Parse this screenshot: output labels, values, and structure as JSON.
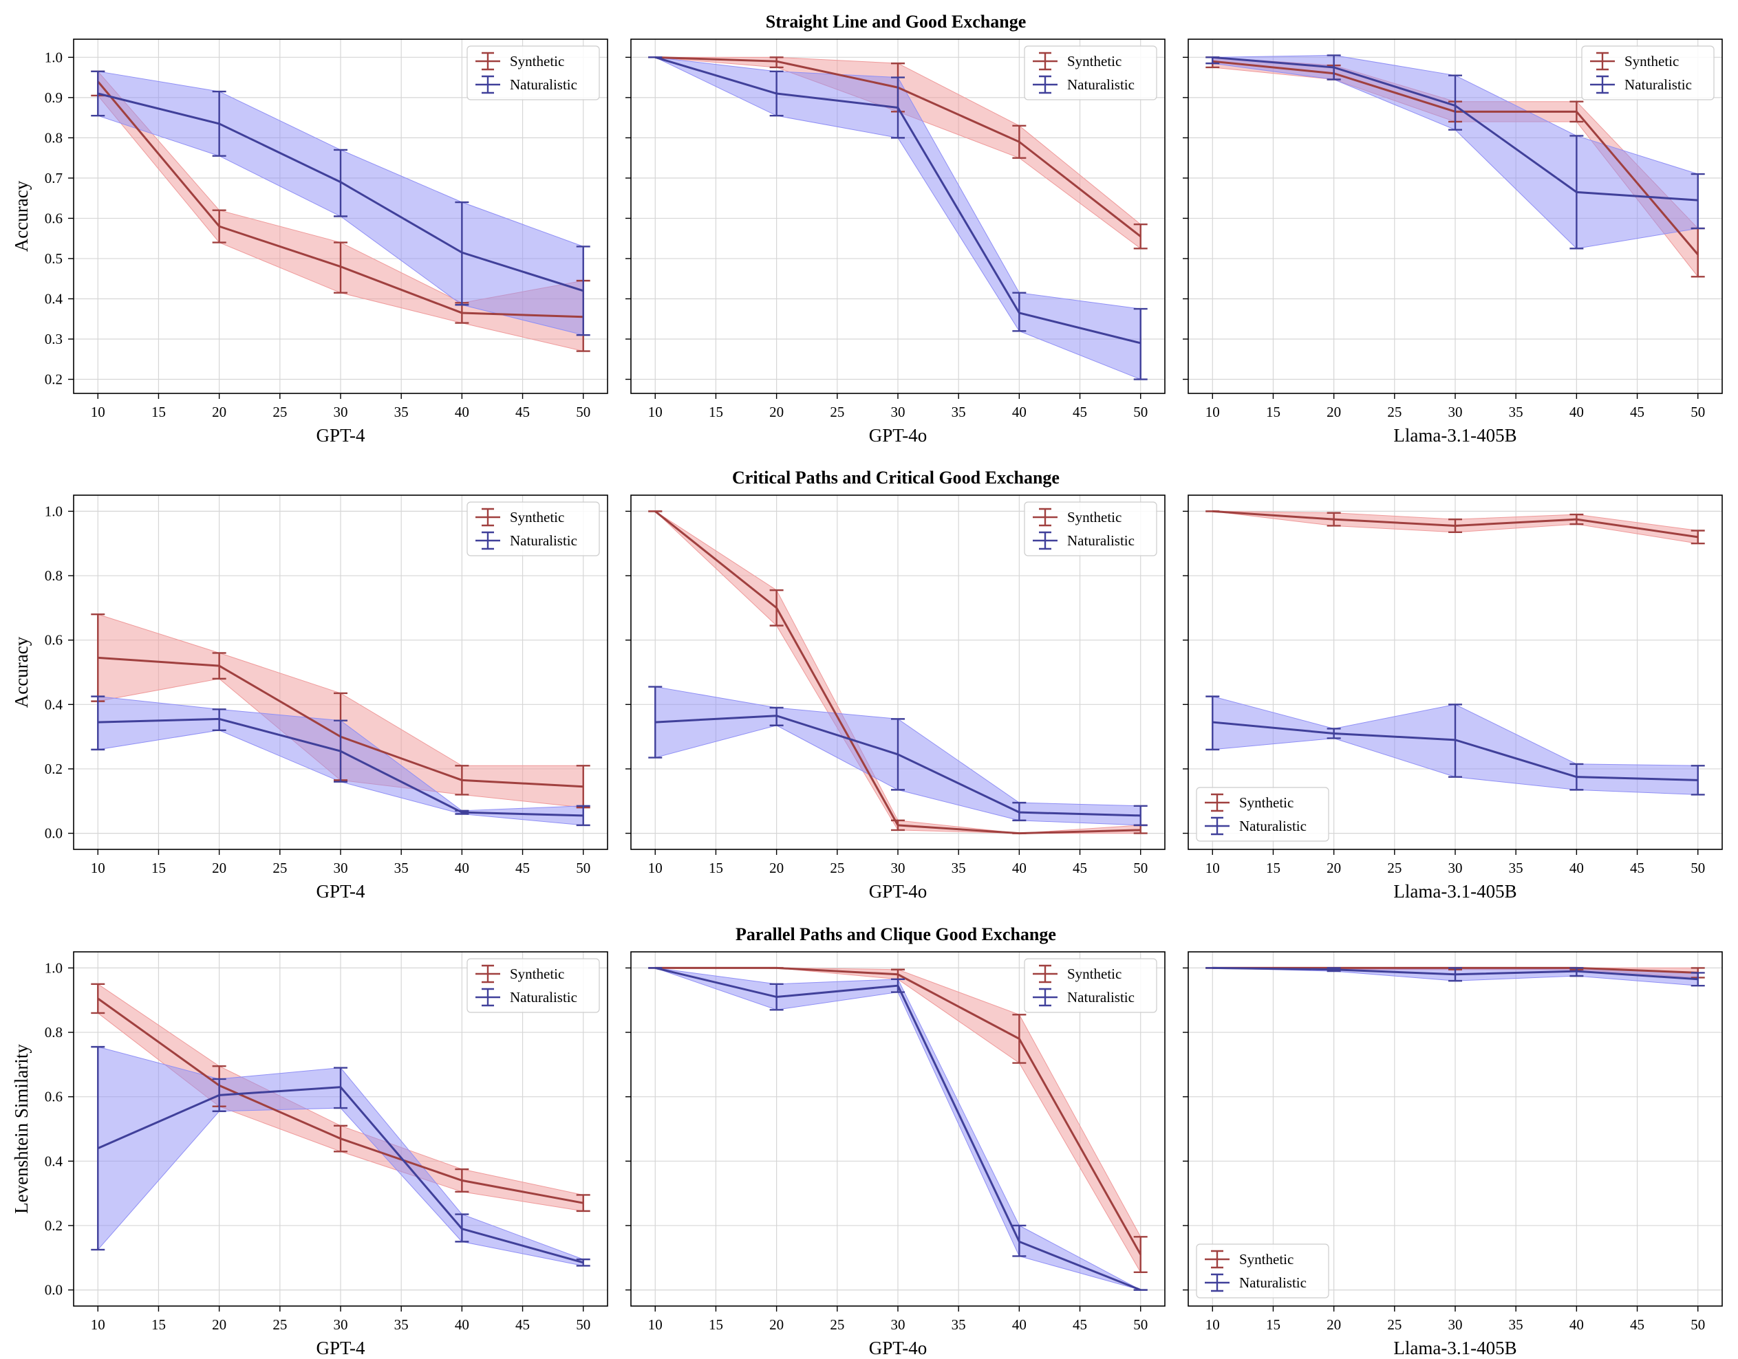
{
  "figure": {
    "row_titles": [
      "Straight Line and Good Exchange",
      "Critical Paths and Critical Good Exchange",
      "Parallel Paths and Clique Good Exchange"
    ],
    "row_ylabels": [
      "Accuracy",
      "Accuracy",
      "Levenshtein Similarity"
    ],
    "col_xlabels": [
      "GPT-4",
      "GPT-4o",
      "Llama-3.1-405B"
    ],
    "colors": {
      "synthetic_line": "#a0403f",
      "synthetic_fill": "#ef9a9a",
      "naturalistic_line": "#40409a",
      "naturalistic_fill": "#8f8ff5"
    }
  },
  "chart_data": [
    {
      "type": "line",
      "title": "Straight Line and Good Exchange",
      "xlabel": "GPT-4",
      "ylabel": "Accuracy",
      "x": [
        10,
        20,
        30,
        40,
        50
      ],
      "xlim": [
        8,
        52
      ],
      "ylim": [
        0.165,
        1.045
      ],
      "xticks": [
        10,
        15,
        20,
        25,
        30,
        35,
        40,
        45,
        50
      ],
      "yticks": [
        0.2,
        0.3,
        0.4,
        0.5,
        0.6,
        0.7,
        0.8,
        0.9,
        1.0
      ],
      "legend_position": "upper right",
      "series": [
        {
          "name": "Synthetic",
          "values": [
            0.94,
            0.58,
            0.48,
            0.365,
            0.355
          ],
          "lower": [
            0.905,
            0.54,
            0.415,
            0.34,
            0.27
          ],
          "upper": [
            0.965,
            0.62,
            0.54,
            0.39,
            0.445
          ]
        },
        {
          "name": "Naturalistic",
          "values": [
            0.91,
            0.835,
            0.69,
            0.515,
            0.42
          ],
          "lower": [
            0.855,
            0.755,
            0.605,
            0.385,
            0.31
          ],
          "upper": [
            0.965,
            0.915,
            0.77,
            0.64,
            0.53
          ]
        }
      ]
    },
    {
      "type": "line",
      "title": "Straight Line and Good Exchange",
      "xlabel": "GPT-4o",
      "ylabel": "Accuracy",
      "x": [
        10,
        20,
        30,
        40,
        50
      ],
      "xlim": [
        8,
        52
      ],
      "ylim": [
        0.165,
        1.045
      ],
      "xticks": [
        10,
        15,
        20,
        25,
        30,
        35,
        40,
        45,
        50
      ],
      "yticks": [
        0.2,
        0.3,
        0.4,
        0.5,
        0.6,
        0.7,
        0.8,
        0.9,
        1.0
      ],
      "legend_position": "upper right",
      "series": [
        {
          "name": "Synthetic",
          "values": [
            1.0,
            0.99,
            0.925,
            0.79,
            0.555
          ],
          "lower": [
            1.0,
            0.975,
            0.865,
            0.75,
            0.525
          ],
          "upper": [
            1.0,
            1.0,
            0.985,
            0.83,
            0.585
          ]
        },
        {
          "name": "Naturalistic",
          "values": [
            1.0,
            0.91,
            0.875,
            0.365,
            0.29
          ],
          "lower": [
            1.0,
            0.855,
            0.8,
            0.32,
            0.2
          ],
          "upper": [
            1.0,
            0.965,
            0.95,
            0.415,
            0.375
          ]
        }
      ]
    },
    {
      "type": "line",
      "title": "Straight Line and Good Exchange",
      "xlabel": "Llama-3.1-405B",
      "ylabel": "Accuracy",
      "x": [
        10,
        20,
        30,
        40,
        50
      ],
      "xlim": [
        8,
        52
      ],
      "ylim": [
        0.165,
        1.045
      ],
      "xticks": [
        10,
        15,
        20,
        25,
        30,
        35,
        40,
        45,
        50
      ],
      "yticks": [
        0.2,
        0.3,
        0.4,
        0.5,
        0.6,
        0.7,
        0.8,
        0.9,
        1.0
      ],
      "legend_position": "upper right",
      "series": [
        {
          "name": "Synthetic",
          "values": [
            0.99,
            0.96,
            0.865,
            0.865,
            0.51
          ],
          "lower": [
            0.975,
            0.945,
            0.84,
            0.84,
            0.455
          ],
          "upper": [
            1.0,
            0.98,
            0.89,
            0.89,
            0.575
          ]
        },
        {
          "name": "Naturalistic",
          "values": [
            1.0,
            0.975,
            0.88,
            0.665,
            0.645
          ],
          "lower": [
            0.985,
            0.945,
            0.82,
            0.525,
            0.575
          ],
          "upper": [
            1.0,
            1.005,
            0.955,
            0.805,
            0.71
          ]
        }
      ]
    },
    {
      "type": "line",
      "title": "Critical Paths and Critical Good Exchange",
      "xlabel": "GPT-4",
      "ylabel": "Accuracy",
      "x": [
        10,
        20,
        30,
        40,
        50
      ],
      "xlim": [
        8,
        52
      ],
      "ylim": [
        -0.05,
        1.05
      ],
      "xticks": [
        10,
        15,
        20,
        25,
        30,
        35,
        40,
        45,
        50
      ],
      "yticks": [
        0.0,
        0.2,
        0.4,
        0.6,
        0.8,
        1.0
      ],
      "legend_position": "upper right",
      "series": [
        {
          "name": "Synthetic",
          "values": [
            0.545,
            0.52,
            0.3,
            0.165,
            0.145
          ],
          "lower": [
            0.41,
            0.48,
            0.165,
            0.12,
            0.08
          ],
          "upper": [
            0.68,
            0.56,
            0.435,
            0.21,
            0.21
          ]
        },
        {
          "name": "Naturalistic",
          "values": [
            0.345,
            0.355,
            0.255,
            0.065,
            0.055
          ],
          "lower": [
            0.26,
            0.32,
            0.16,
            0.06,
            0.025
          ],
          "upper": [
            0.425,
            0.385,
            0.35,
            0.07,
            0.085
          ]
        }
      ]
    },
    {
      "type": "line",
      "title": "Critical Paths and Critical Good Exchange",
      "xlabel": "GPT-4o",
      "ylabel": "Accuracy",
      "x": [
        10,
        20,
        30,
        40,
        50
      ],
      "xlim": [
        8,
        52
      ],
      "ylim": [
        -0.05,
        1.05
      ],
      "xticks": [
        10,
        15,
        20,
        25,
        30,
        35,
        40,
        45,
        50
      ],
      "yticks": [
        0.0,
        0.2,
        0.4,
        0.6,
        0.8,
        1.0
      ],
      "legend_position": "upper right",
      "series": [
        {
          "name": "Synthetic",
          "values": [
            1.0,
            0.7,
            0.025,
            0.0,
            0.01
          ],
          "lower": [
            1.0,
            0.645,
            0.01,
            0.0,
            0.0
          ],
          "upper": [
            1.0,
            0.755,
            0.04,
            0.0,
            0.025
          ]
        },
        {
          "name": "Naturalistic",
          "values": [
            0.345,
            0.365,
            0.245,
            0.065,
            0.055
          ],
          "lower": [
            0.235,
            0.335,
            0.135,
            0.04,
            0.025
          ],
          "upper": [
            0.455,
            0.39,
            0.355,
            0.095,
            0.085
          ]
        }
      ]
    },
    {
      "type": "line",
      "title": "Critical Paths and Critical Good Exchange",
      "xlabel": "Llama-3.1-405B",
      "ylabel": "Accuracy",
      "x": [
        10,
        20,
        30,
        40,
        50
      ],
      "xlim": [
        8,
        52
      ],
      "ylim": [
        -0.05,
        1.05
      ],
      "xticks": [
        10,
        15,
        20,
        25,
        30,
        35,
        40,
        45,
        50
      ],
      "yticks": [
        0.0,
        0.2,
        0.4,
        0.6,
        0.8,
        1.0
      ],
      "legend_position": "lower left",
      "series": [
        {
          "name": "Synthetic",
          "values": [
            1.0,
            0.975,
            0.955,
            0.975,
            0.92
          ],
          "lower": [
            1.0,
            0.955,
            0.935,
            0.96,
            0.9
          ],
          "upper": [
            1.0,
            0.995,
            0.975,
            0.99,
            0.94
          ]
        },
        {
          "name": "Naturalistic",
          "values": [
            0.345,
            0.31,
            0.29,
            0.175,
            0.165
          ],
          "lower": [
            0.26,
            0.295,
            0.175,
            0.135,
            0.12
          ],
          "upper": [
            0.425,
            0.325,
            0.4,
            0.215,
            0.21
          ]
        }
      ]
    },
    {
      "type": "line",
      "title": "Parallel Paths and Clique Good Exchange",
      "xlabel": "GPT-4",
      "ylabel": "Levenshtein Similarity",
      "x": [
        10,
        20,
        30,
        40,
        50
      ],
      "xlim": [
        8,
        52
      ],
      "ylim": [
        -0.05,
        1.05
      ],
      "xticks": [
        10,
        15,
        20,
        25,
        30,
        35,
        40,
        45,
        50
      ],
      "yticks": [
        0.0,
        0.2,
        0.4,
        0.6,
        0.8,
        1.0
      ],
      "legend_position": "upper right",
      "series": [
        {
          "name": "Synthetic",
          "values": [
            0.905,
            0.635,
            0.47,
            0.34,
            0.27
          ],
          "lower": [
            0.86,
            0.57,
            0.43,
            0.305,
            0.245
          ],
          "upper": [
            0.95,
            0.695,
            0.51,
            0.375,
            0.295
          ]
        },
        {
          "name": "Naturalistic",
          "values": [
            0.44,
            0.605,
            0.63,
            0.19,
            0.085
          ],
          "lower": [
            0.125,
            0.555,
            0.565,
            0.15,
            0.075
          ],
          "upper": [
            0.755,
            0.655,
            0.69,
            0.235,
            0.095
          ]
        }
      ]
    },
    {
      "type": "line",
      "title": "Parallel Paths and Clique Good Exchange",
      "xlabel": "GPT-4o",
      "ylabel": "Levenshtein Similarity",
      "x": [
        10,
        20,
        30,
        40,
        50
      ],
      "xlim": [
        8,
        52
      ],
      "ylim": [
        -0.05,
        1.05
      ],
      "xticks": [
        10,
        15,
        20,
        25,
        30,
        35,
        40,
        45,
        50
      ],
      "yticks": [
        0.0,
        0.2,
        0.4,
        0.6,
        0.8,
        1.0
      ],
      "legend_position": "upper right",
      "series": [
        {
          "name": "Synthetic",
          "values": [
            1.0,
            1.0,
            0.98,
            0.78,
            0.11
          ],
          "lower": [
            1.0,
            1.0,
            0.965,
            0.705,
            0.055
          ],
          "upper": [
            1.0,
            1.0,
            0.995,
            0.855,
            0.165
          ]
        },
        {
          "name": "Naturalistic",
          "values": [
            1.0,
            0.91,
            0.945,
            0.15,
            0.0
          ],
          "lower": [
            1.0,
            0.87,
            0.925,
            0.105,
            0.0
          ],
          "upper": [
            1.0,
            0.95,
            0.965,
            0.2,
            0.0
          ]
        }
      ]
    },
    {
      "type": "line",
      "title": "Parallel Paths and Clique Good Exchange",
      "xlabel": "Llama-3.1-405B",
      "ylabel": "Levenshtein Similarity",
      "x": [
        10,
        20,
        30,
        40,
        50
      ],
      "xlim": [
        8,
        52
      ],
      "ylim": [
        -0.05,
        1.05
      ],
      "xticks": [
        10,
        15,
        20,
        25,
        30,
        35,
        40,
        45,
        50
      ],
      "yticks": [
        0.0,
        0.2,
        0.4,
        0.6,
        0.8,
        1.0
      ],
      "legend_position": "lower left",
      "series": [
        {
          "name": "Synthetic",
          "values": [
            1.0,
            1.0,
            1.0,
            1.0,
            0.985
          ],
          "lower": [
            1.0,
            0.995,
            0.995,
            0.995,
            0.97
          ],
          "upper": [
            1.0,
            1.0,
            1.0,
            1.0,
            1.0
          ]
        },
        {
          "name": "Naturalistic",
          "values": [
            1.0,
            0.995,
            0.98,
            0.99,
            0.965
          ],
          "lower": [
            1.0,
            0.99,
            0.96,
            0.975,
            0.945
          ],
          "upper": [
            1.0,
            1.0,
            1.0,
            1.0,
            0.985
          ]
        }
      ]
    }
  ]
}
